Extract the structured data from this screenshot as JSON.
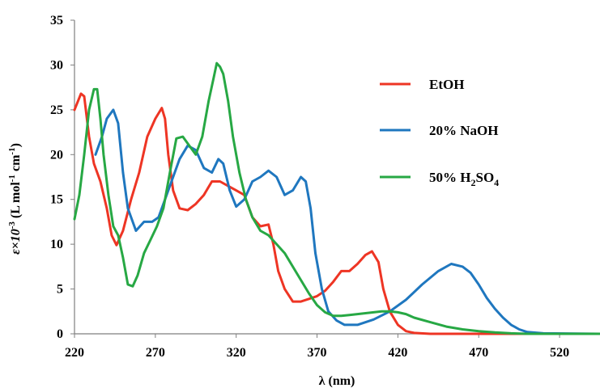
{
  "chart_data": {
    "type": "line",
    "xlabel": "λ (nm)",
    "ylabel": {
      "main": "ε×10",
      "exp": "-3",
      "unit_pre": " (L mol",
      "unit_exp1": "-1",
      "unit_mid": " cm",
      "unit_exp2": "-1",
      "unit_post": ")"
    },
    "xlim": [
      220,
      545
    ],
    "ylim": [
      0,
      35
    ],
    "xticks": [
      220,
      270,
      320,
      370,
      420,
      470,
      520
    ],
    "yticks": [
      0,
      5,
      10,
      15,
      20,
      25,
      30,
      35
    ],
    "grid": false,
    "legend_position": "right",
    "series": [
      {
        "name": "EtOH",
        "name_parts": [
          "EtOH"
        ],
        "color": "#ee3524",
        "points": [
          [
            220,
            25
          ],
          [
            224,
            26.8
          ],
          [
            226,
            26.5
          ],
          [
            229,
            22
          ],
          [
            232,
            19
          ],
          [
            236,
            17
          ],
          [
            240,
            14
          ],
          [
            243,
            11
          ],
          [
            246,
            9.9
          ],
          [
            250,
            11.5
          ],
          [
            255,
            15
          ],
          [
            260,
            18
          ],
          [
            265,
            22
          ],
          [
            270,
            24
          ],
          [
            274,
            25.2
          ],
          [
            276,
            24
          ],
          [
            278,
            20
          ],
          [
            281,
            16
          ],
          [
            285,
            14
          ],
          [
            290,
            13.8
          ],
          [
            295,
            14.5
          ],
          [
            300,
            15.5
          ],
          [
            305,
            17
          ],
          [
            310,
            17
          ],
          [
            315,
            16.5
          ],
          [
            320,
            16
          ],
          [
            325,
            15.5
          ],
          [
            330,
            13
          ],
          [
            335,
            12
          ],
          [
            340,
            12.2
          ],
          [
            343,
            10
          ],
          [
            346,
            7
          ],
          [
            350,
            5
          ],
          [
            355,
            3.6
          ],
          [
            360,
            3.6
          ],
          [
            365,
            3.9
          ],
          [
            370,
            4.2
          ],
          [
            375,
            4.8
          ],
          [
            380,
            5.8
          ],
          [
            385,
            7
          ],
          [
            390,
            7
          ],
          [
            395,
            7.8
          ],
          [
            400,
            8.8
          ],
          [
            404,
            9.2
          ],
          [
            408,
            8
          ],
          [
            411,
            5
          ],
          [
            415,
            2.5
          ],
          [
            420,
            1
          ],
          [
            425,
            0.3
          ],
          [
            430,
            0.1
          ],
          [
            440,
            0
          ],
          [
            545,
            0
          ]
        ]
      },
      {
        "name": "20% NaOH",
        "name_parts": [
          "20% NaOH"
        ],
        "color": "#1f77bf",
        "points": [
          [
            233,
            20
          ],
          [
            237,
            22
          ],
          [
            240,
            24
          ],
          [
            244,
            25
          ],
          [
            247,
            23.5
          ],
          [
            250,
            18
          ],
          [
            253,
            14
          ],
          [
            258,
            11.5
          ],
          [
            263,
            12.5
          ],
          [
            268,
            12.5
          ],
          [
            272,
            13
          ],
          [
            276,
            15
          ],
          [
            280,
            17
          ],
          [
            285,
            19.5
          ],
          [
            290,
            21
          ],
          [
            295,
            20.5
          ],
          [
            300,
            18.5
          ],
          [
            305,
            18
          ],
          [
            309,
            19.5
          ],
          [
            312,
            19
          ],
          [
            316,
            16
          ],
          [
            320,
            14.2
          ],
          [
            325,
            15
          ],
          [
            330,
            17
          ],
          [
            335,
            17.5
          ],
          [
            340,
            18.2
          ],
          [
            345,
            17.5
          ],
          [
            350,
            15.5
          ],
          [
            355,
            16
          ],
          [
            360,
            17.5
          ],
          [
            363,
            17
          ],
          [
            366,
            14
          ],
          [
            369,
            9
          ],
          [
            373,
            5
          ],
          [
            377,
            2.5
          ],
          [
            382,
            1.5
          ],
          [
            387,
            1
          ],
          [
            395,
            1
          ],
          [
            405,
            1.6
          ],
          [
            415,
            2.5
          ],
          [
            425,
            3.8
          ],
          [
            435,
            5.5
          ],
          [
            445,
            7
          ],
          [
            453,
            7.8
          ],
          [
            460,
            7.5
          ],
          [
            465,
            6.8
          ],
          [
            470,
            5.5
          ],
          [
            475,
            4
          ],
          [
            480,
            2.8
          ],
          [
            485,
            1.8
          ],
          [
            490,
            1
          ],
          [
            495,
            0.5
          ],
          [
            500,
            0.2
          ],
          [
            510,
            0.05
          ],
          [
            545,
            0
          ]
        ]
      },
      {
        "name": "50% H2SO4",
        "name_parts": [
          "50% H",
          "2",
          "SO",
          "4"
        ],
        "color": "#27a844",
        "points": [
          [
            220,
            12.8
          ],
          [
            223,
            15.5
          ],
          [
            226,
            20
          ],
          [
            229,
            25
          ],
          [
            232,
            27.3
          ],
          [
            234,
            27.3
          ],
          [
            236,
            24
          ],
          [
            238,
            20
          ],
          [
            241,
            15.5
          ],
          [
            244,
            12
          ],
          [
            247,
            11
          ],
          [
            250,
            8.5
          ],
          [
            253,
            5.5
          ],
          [
            256,
            5.3
          ],
          [
            259,
            6.5
          ],
          [
            263,
            9
          ],
          [
            267,
            10.5
          ],
          [
            271,
            12
          ],
          [
            275,
            14
          ],
          [
            279,
            18
          ],
          [
            283,
            21.8
          ],
          [
            287,
            22
          ],
          [
            291,
            21
          ],
          [
            295,
            20
          ],
          [
            299,
            22
          ],
          [
            303,
            26
          ],
          [
            306,
            28.5
          ],
          [
            308,
            30.2
          ],
          [
            310,
            29.8
          ],
          [
            312,
            29
          ],
          [
            315,
            26
          ],
          [
            318,
            22
          ],
          [
            322,
            18
          ],
          [
            326,
            15
          ],
          [
            330,
            13
          ],
          [
            335,
            11.5
          ],
          [
            340,
            11
          ],
          [
            345,
            10
          ],
          [
            350,
            9
          ],
          [
            355,
            7.5
          ],
          [
            360,
            6
          ],
          [
            365,
            4.5
          ],
          [
            370,
            3.2
          ],
          [
            375,
            2.4
          ],
          [
            380,
            2
          ],
          [
            385,
            2
          ],
          [
            390,
            2.1
          ],
          [
            395,
            2.2
          ],
          [
            400,
            2.3
          ],
          [
            405,
            2.4
          ],
          [
            410,
            2.5
          ],
          [
            415,
            2.5
          ],
          [
            420,
            2.4
          ],
          [
            425,
            2.2
          ],
          [
            430,
            1.8
          ],
          [
            440,
            1.3
          ],
          [
            450,
            0.8
          ],
          [
            460,
            0.5
          ],
          [
            470,
            0.3
          ],
          [
            480,
            0.15
          ],
          [
            490,
            0.05
          ],
          [
            500,
            0
          ],
          [
            545,
            0
          ]
        ]
      }
    ]
  }
}
